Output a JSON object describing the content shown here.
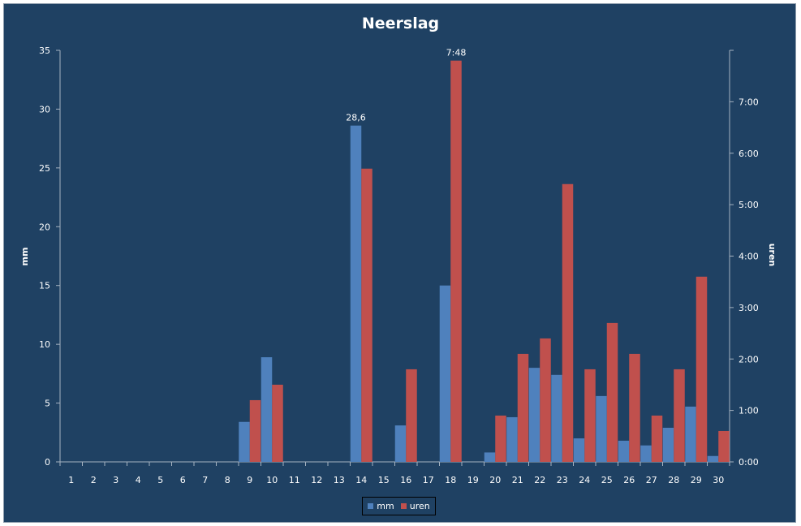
{
  "chart_data": {
    "type": "bar",
    "title": "Neerslag",
    "ylabel": "mm",
    "y2label": "uren",
    "categories": [
      "1",
      "2",
      "3",
      "4",
      "5",
      "6",
      "7",
      "8",
      "9",
      "10",
      "11",
      "12",
      "13",
      "14",
      "15",
      "16",
      "17",
      "18",
      "19",
      "20",
      "21",
      "22",
      "23",
      "24",
      "25",
      "26",
      "27",
      "28",
      "29",
      "30"
    ],
    "ylim": [
      0,
      35
    ],
    "yticks": [
      "0",
      "5",
      "10",
      "15",
      "20",
      "25",
      "30",
      "35"
    ],
    "y2lim": [
      0,
      8
    ],
    "y2ticks": [
      "0:00",
      "1:00",
      "2:00",
      "3:00",
      "4:00",
      "5:00",
      "6:00",
      "7:00"
    ],
    "series": [
      {
        "name": "mm",
        "axis": "left",
        "color": "#4f81bd",
        "values": [
          0,
          0,
          0,
          0,
          0,
          0,
          0,
          0,
          3.4,
          8.9,
          0,
          0,
          0,
          28.6,
          0,
          3.1,
          0,
          15.0,
          0,
          0.8,
          3.8,
          8.0,
          7.4,
          2.0,
          5.6,
          1.8,
          1.4,
          2.9,
          4.7,
          0.5
        ]
      },
      {
        "name": "uren",
        "axis": "right",
        "unit": "hours",
        "color": "#c0504d",
        "values": [
          0,
          0,
          0,
          0,
          0,
          0,
          0,
          0,
          1.2,
          1.5,
          0,
          0,
          0,
          5.7,
          0,
          1.8,
          0,
          7.8,
          0,
          0.9,
          2.1,
          2.4,
          5.4,
          1.8,
          2.7,
          2.1,
          0.9,
          1.8,
          3.6,
          0.6
        ]
      }
    ],
    "data_labels": [
      {
        "series": "mm",
        "category": "14",
        "text": "28,6"
      },
      {
        "series": "uren",
        "category": "18",
        "text": "7:48"
      }
    ],
    "legend_position": "bottom",
    "grid": false
  }
}
